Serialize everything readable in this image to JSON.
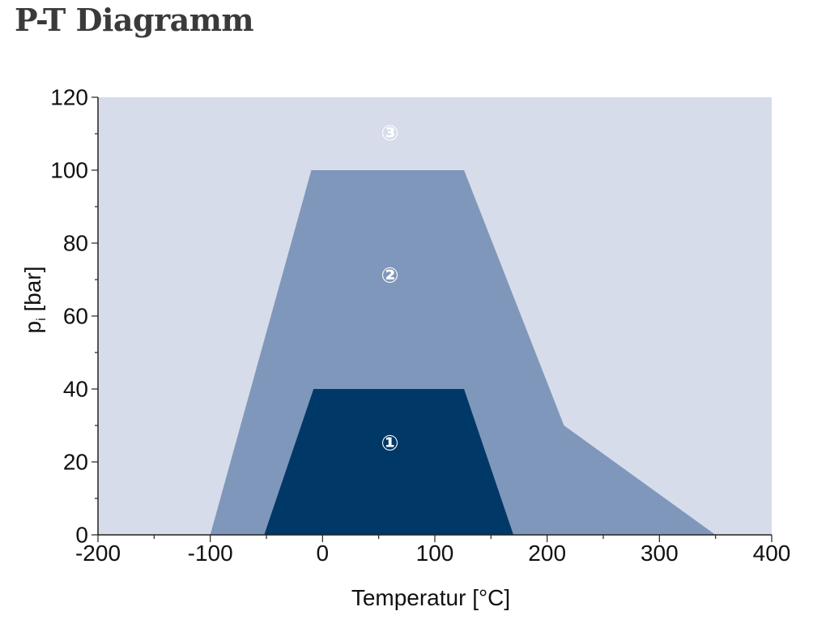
{
  "page": {
    "title": "P-T Diagramm"
  },
  "chart_data": {
    "type": "area",
    "title": "P-T Diagramm",
    "xlabel": "Temperatur [°C]",
    "ylabel_main": "p",
    "ylabel_sub": "i",
    "ylabel_unit": " [bar]",
    "xlim": [
      -200,
      400
    ],
    "ylim": [
      0,
      120
    ],
    "x_ticks": [
      -200,
      -100,
      0,
      100,
      200,
      300,
      400
    ],
    "y_ticks": [
      0,
      20,
      40,
      60,
      80,
      100,
      120
    ],
    "x_minor_step": 50,
    "y_minor_step": 10,
    "grid": false,
    "colors": {
      "background_region": "#d6dce9",
      "region_2": "#7f97ba",
      "region_1": "#003868",
      "axis": "#222222"
    },
    "regions": [
      {
        "label": "②",
        "label_at": {
          "x": 60,
          "y": 71
        },
        "points": [
          [
            -100,
            0
          ],
          [
            -10,
            100
          ],
          [
            126,
            100
          ],
          [
            215,
            30
          ],
          [
            350,
            0
          ]
        ]
      },
      {
        "label": "①",
        "label_at": {
          "x": 60,
          "y": 25
        },
        "points": [
          [
            -52,
            0
          ],
          [
            -8,
            40
          ],
          [
            126,
            40
          ],
          [
            170,
            0
          ]
        ]
      }
    ],
    "background_label": {
      "label": "③",
      "label_at": {
        "x": 60,
        "y": 110
      }
    }
  }
}
